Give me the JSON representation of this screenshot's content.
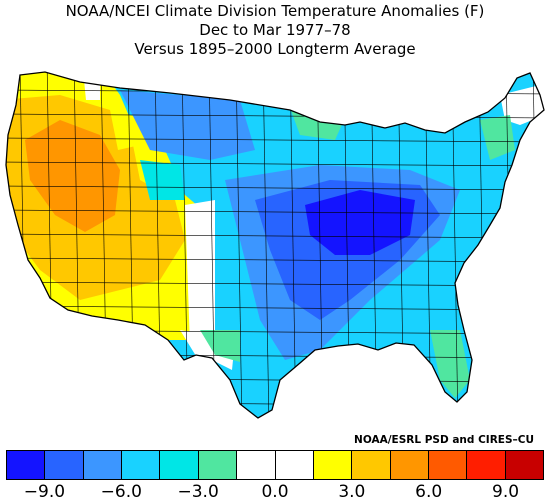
{
  "title": {
    "line1": "NOAA/NCEI Climate Division Temperature Anomalies (F)",
    "line2": "Dec to Mar 1977–78",
    "line3": "Versus 1895–2000 Longterm Average"
  },
  "credit": "NOAA/ESRL PSD and CIRES–CU",
  "colorbar": {
    "colors": [
      "#1414ff",
      "#2864ff",
      "#3c96ff",
      "#19d2ff",
      "#00e6e6",
      "#50e6a0",
      "#ffffff",
      "#ffffff",
      "#ffff00",
      "#ffc800",
      "#ff9600",
      "#ff5a00",
      "#ff1e00",
      "#c80000"
    ],
    "tick_labels": [
      "−9.0",
      "−6.0",
      "−3.0",
      "0.0",
      "3.0",
      "6.0",
      "9.0"
    ],
    "tick_values": [
      -9,
      -6,
      -3,
      0,
      3,
      6,
      9
    ],
    "range": [
      -10.5,
      10.5
    ]
  },
  "map": {
    "region": "Contiguous United States",
    "units": "F",
    "colors": {
      "very_cold": "#1414ff",
      "cold": "#2864ff",
      "cool": "#3c96ff",
      "slightly_cool": "#19d2ff",
      "cyan": "#00e6e6",
      "mint": "#50e6a0",
      "neutral": "#ffffff",
      "warm_yellow": "#ffff00",
      "warm_gold": "#ffc800",
      "warm_orange": "#ff9600"
    }
  }
}
